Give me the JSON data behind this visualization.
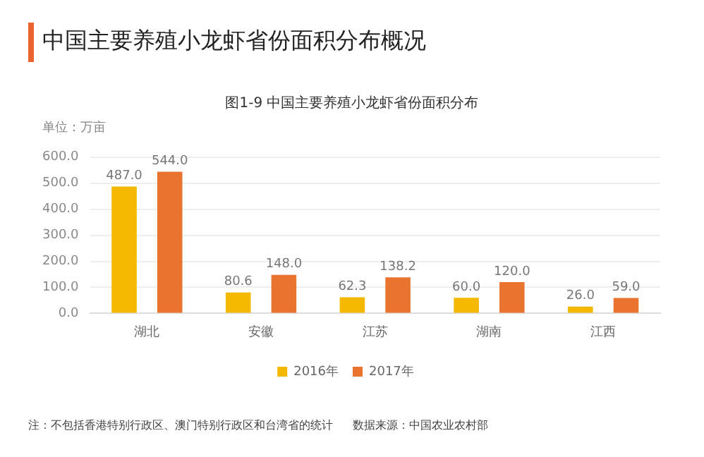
{
  "chart_data": {
    "type": "bar",
    "title": "中国主要养殖小龙虾省份面积分布概况",
    "subtitle": "图1-9 中国主要养殖小龙虾省份面积分布",
    "ylabel": "单位：万亩",
    "categories": [
      "湖北",
      "安徽",
      "江苏",
      "湖南",
      "江西"
    ],
    "series": [
      {
        "name": "2016年",
        "color": "#f5b800",
        "values": [
          487.0,
          80.6,
          62.3,
          60.0,
          26.0
        ],
        "value_labels": [
          "487.0",
          "80.6",
          "62.3",
          "60.0",
          "26.0"
        ]
      },
      {
        "name": "2017年",
        "color": "#e8742f",
        "values": [
          544.0,
          148.0,
          138.2,
          120.0,
          59.0
        ],
        "value_labels": [
          "544.0",
          "148.0",
          "138.2",
          "120.0",
          "59.0"
        ]
      }
    ],
    "ylim": [
      0,
      600
    ],
    "yticks": [
      {
        "value": 0,
        "label": "0.0"
      },
      {
        "value": 100,
        "label": "100.0"
      },
      {
        "value": 200,
        "label": "200.0"
      },
      {
        "value": 300,
        "label": "300.0"
      },
      {
        "value": 400,
        "label": "400.0"
      },
      {
        "value": 500,
        "label": "500.0"
      },
      {
        "value": 600,
        "label": "600.0"
      }
    ],
    "grid": "y",
    "legend": "bottom",
    "annotations": [
      "注：不包括香港特别行政区、澳门特别行政区和台湾省的统计",
      "数据来源：中国农业农村部"
    ]
  }
}
